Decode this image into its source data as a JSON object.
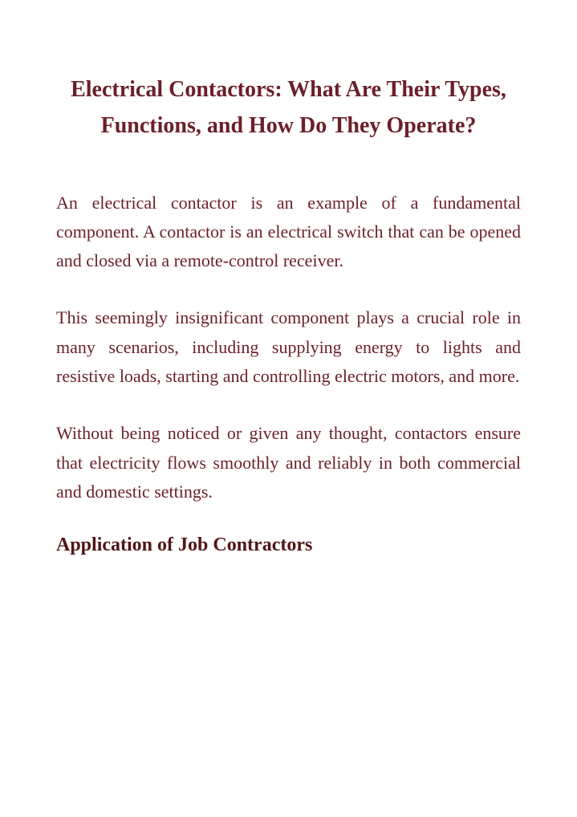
{
  "document": {
    "title": "Electrical Contactors: What Are Their Types, Functions, and How Do They Operate?",
    "paragraphs": [
      "An electrical contactor is an example of a fundamental component. A contactor is an electrical switch that can be opened and closed via a remote-control receiver.",
      "This seemingly insignificant component plays a crucial role in many scenarios, including supplying energy to lights and resistive loads, starting and controlling electric motors, and more.",
      "Without being noticed or given any thought, contactors ensure that electricity flows smoothly and reliably in both commercial and domestic settings."
    ],
    "section_heading": "Application of Job Contractors"
  },
  "styling": {
    "title_color": "#6b1f2a",
    "title_fontsize": "28px",
    "body_color": "#6b1f2a",
    "body_fontsize": "22px",
    "heading_color": "#521515",
    "heading_fontsize": "24px",
    "background_color": "#ffffff",
    "font_family": "Comic Sans MS"
  }
}
